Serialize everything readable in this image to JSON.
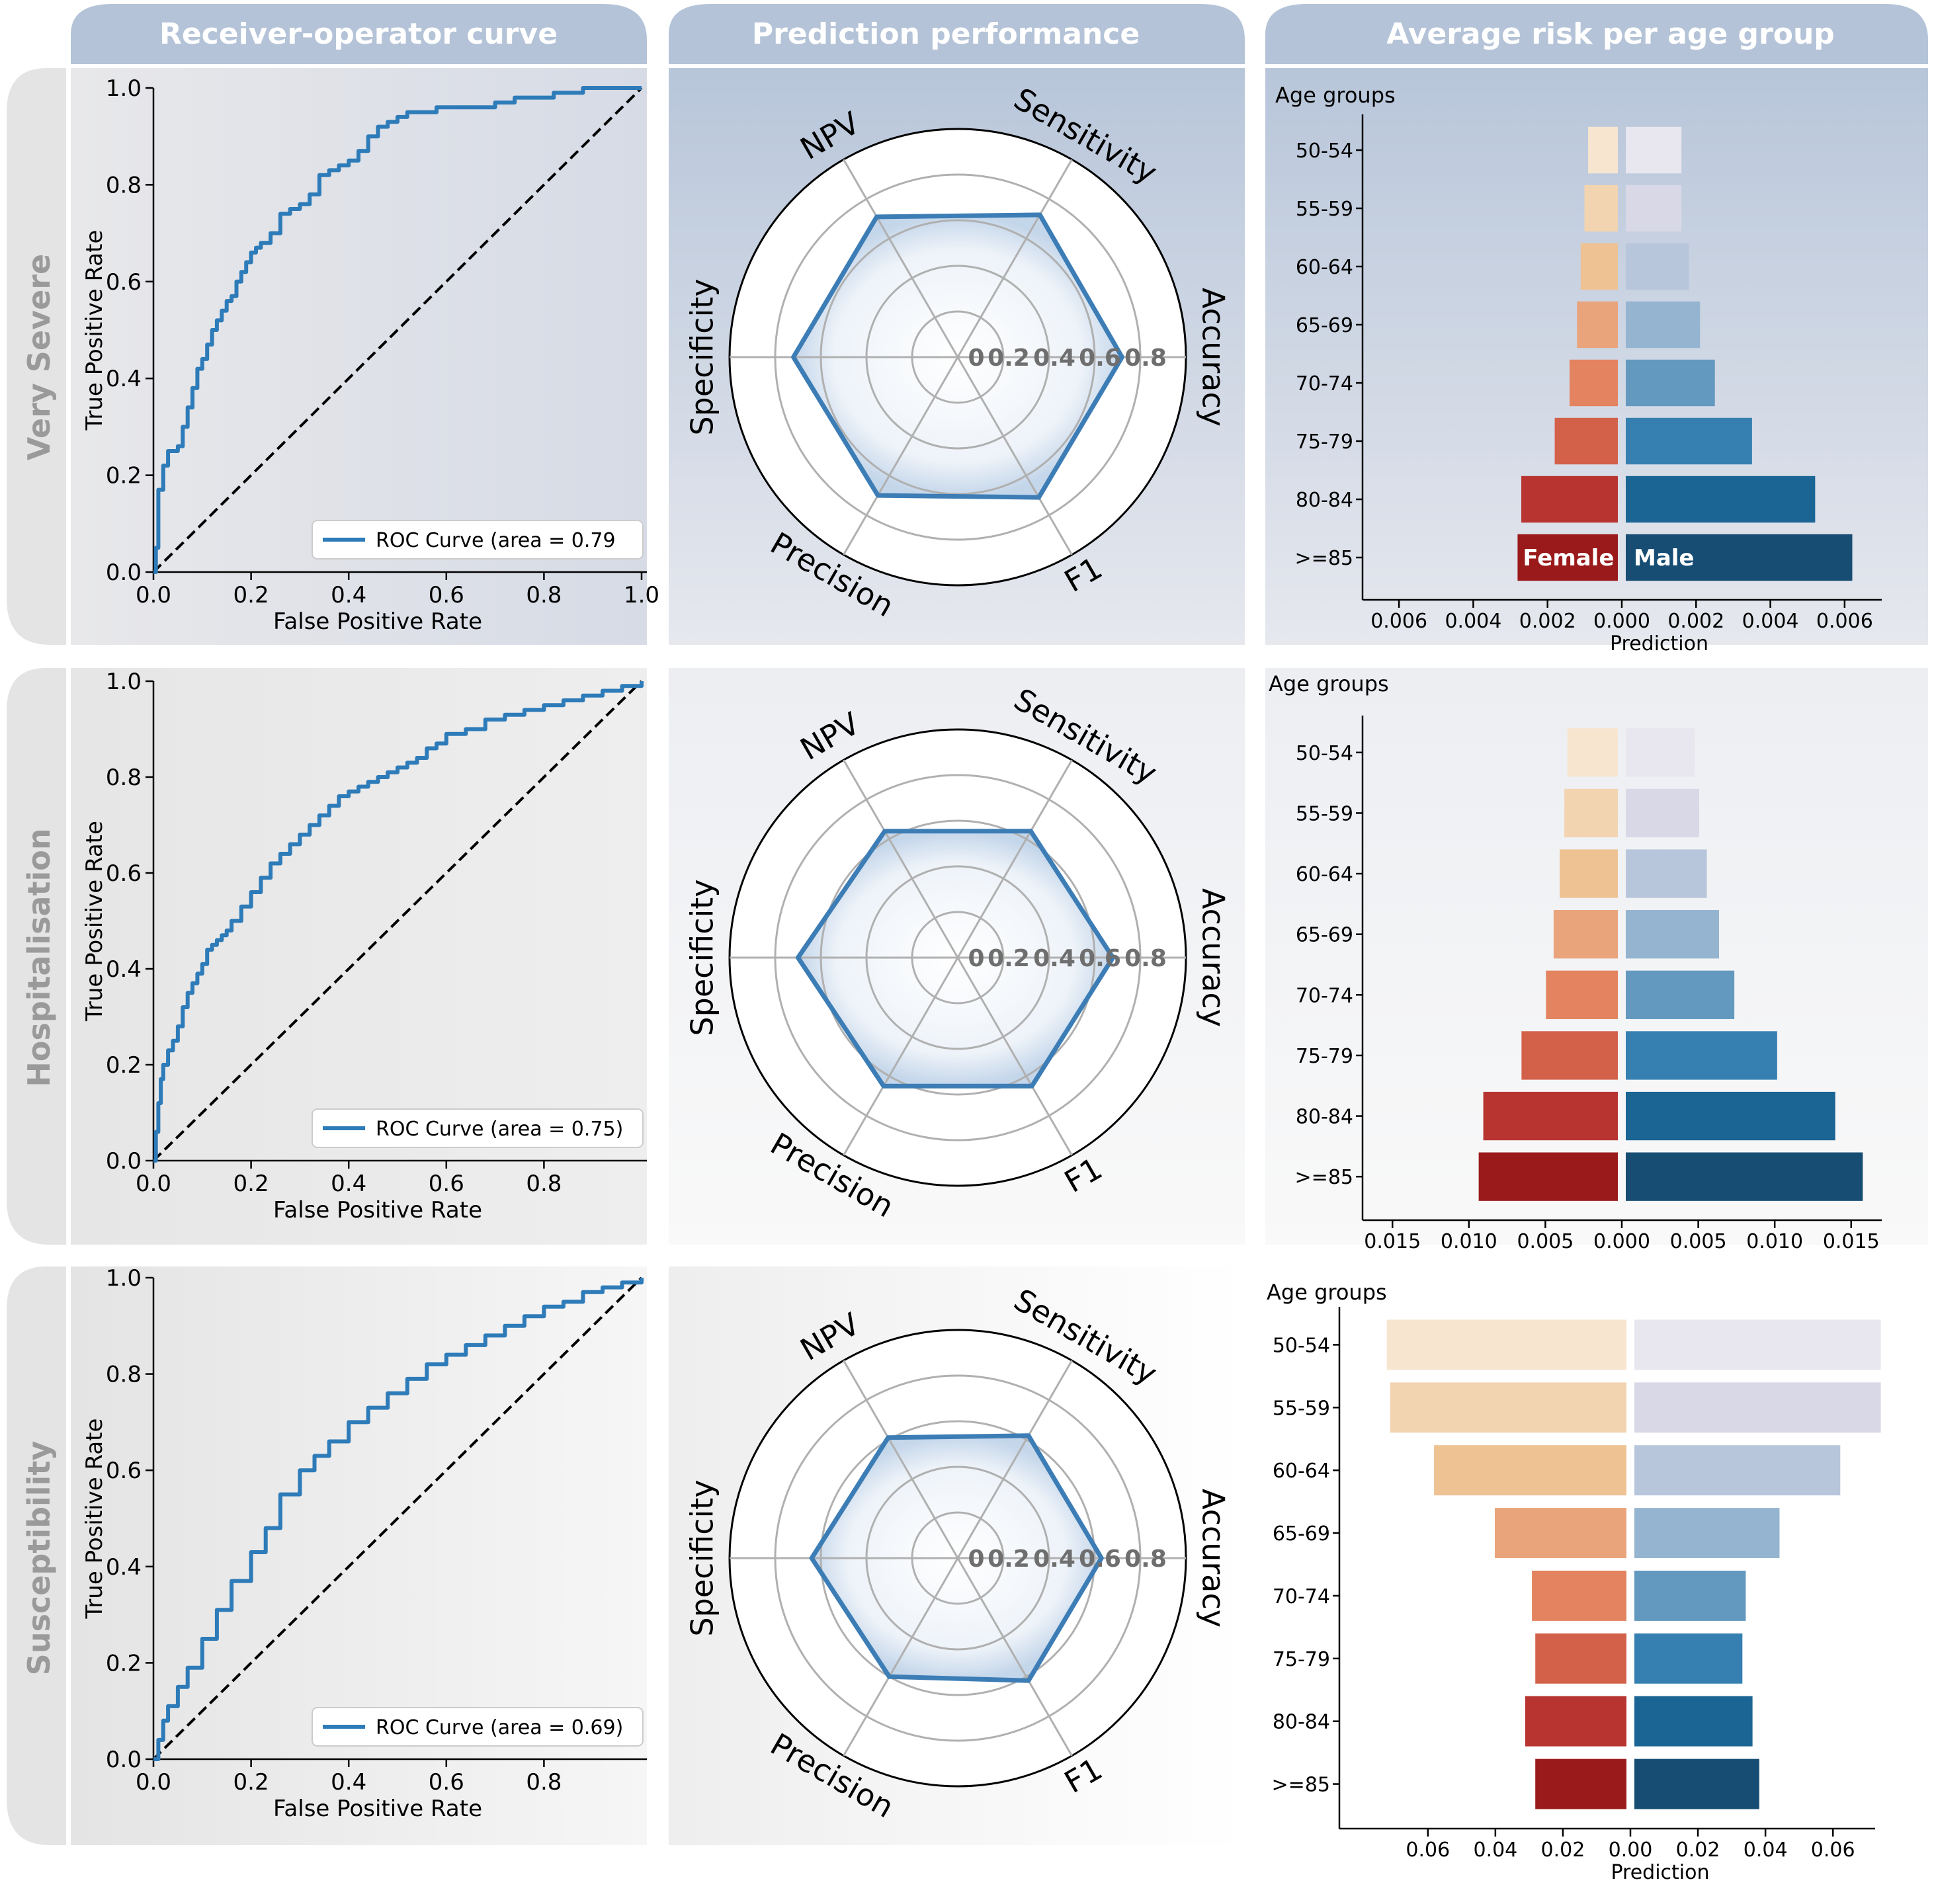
{
  "headers": {
    "roc": "Receiver-operator curve",
    "radar": "Prediction performance",
    "pyramid": "Average risk per age group"
  },
  "rows": [
    "Very Severe",
    "Hospitalisation",
    "Susceptibility"
  ],
  "colors": {
    "header_bg": "#b4c3d7",
    "roc_line": "#2d7bb8",
    "radar_line": "#3d7db6",
    "female": [
      "#f7e5d0",
      "#f3d4b1",
      "#eec292",
      "#e9a47c",
      "#e4835f",
      "#d36149",
      "#b83431",
      "#9a1a1b"
    ],
    "male": [
      "#e8e6ef",
      "#d8d8e7",
      "#b8c6dc",
      "#95b4d0",
      "#6399bf",
      "#3580b0",
      "#1b6595",
      "#174d73"
    ]
  },
  "chart_data": [
    {
      "type": "line",
      "panel": "roc",
      "row": "Very Severe",
      "xlabel": "False Positive Rate",
      "ylabel": "True Positive Rate",
      "xlim": [
        0,
        1
      ],
      "ylim": [
        0,
        1
      ],
      "xticks": [
        "0.0",
        "0.2",
        "0.4",
        "0.6",
        "0.8",
        "1.0"
      ],
      "yticks": [
        "0.0",
        "0.2",
        "0.4",
        "0.6",
        "0.8",
        "1.0"
      ],
      "legend": "ROC Curve (area = 0.79",
      "diagonal": true,
      "x": [
        0,
        0.005,
        0.01,
        0.01,
        0.02,
        0.02,
        0.03,
        0.03,
        0.04,
        0.05,
        0.06,
        0.07,
        0.08,
        0.09,
        0.1,
        0.11,
        0.12,
        0.13,
        0.14,
        0.15,
        0.16,
        0.17,
        0.18,
        0.19,
        0.2,
        0.21,
        0.22,
        0.24,
        0.26,
        0.28,
        0.3,
        0.32,
        0.34,
        0.36,
        0.38,
        0.4,
        0.42,
        0.44,
        0.46,
        0.48,
        0.5,
        0.52,
        0.55,
        0.58,
        0.62,
        0.66,
        0.7,
        0.74,
        0.78,
        0.82,
        0.86,
        0.88,
        0.92,
        0.96,
        1.0
      ],
      "y": [
        0,
        0.05,
        0.1,
        0.17,
        0.18,
        0.22,
        0.24,
        0.25,
        0.25,
        0.26,
        0.3,
        0.34,
        0.38,
        0.42,
        0.44,
        0.47,
        0.5,
        0.52,
        0.54,
        0.56,
        0.57,
        0.6,
        0.62,
        0.64,
        0.66,
        0.67,
        0.68,
        0.7,
        0.74,
        0.75,
        0.76,
        0.78,
        0.82,
        0.83,
        0.84,
        0.85,
        0.87,
        0.9,
        0.92,
        0.93,
        0.94,
        0.95,
        0.95,
        0.96,
        0.96,
        0.96,
        0.97,
        0.98,
        0.98,
        0.99,
        0.99,
        1.0,
        1.0,
        1.0,
        1.0
      ]
    },
    {
      "type": "radar",
      "panel": "radar",
      "row": "Very Severe",
      "axes": [
        "Sensitivity",
        "Accuracy",
        "F1",
        "Precision",
        "Specificity",
        "NPV"
      ],
      "rtick_labels": [
        "0",
        "0.2",
        "0.4",
        "0.6",
        "0.8"
      ],
      "rmax": 1.0,
      "values": [
        0.72,
        0.72,
        0.71,
        0.7,
        0.72,
        0.71
      ]
    },
    {
      "type": "bar",
      "panel": "pyramid",
      "row": "Very Severe",
      "categories": [
        "50-54",
        "55-59",
        "60-64",
        "65-69",
        "70-74",
        "75-79",
        "80-84",
        ">=85"
      ],
      "category_title": "Age groups",
      "xlabel": "Prediction",
      "xlim": [
        -0.007,
        0.007
      ],
      "xticks": [
        "0.006",
        "0.004",
        "0.002",
        "0.000",
        "0.002",
        "0.004",
        "0.006"
      ],
      "xtick_values": [
        -0.006,
        -0.004,
        -0.002,
        0,
        0.002,
        0.004,
        0.006
      ],
      "series": [
        {
          "name": "Female",
          "values": [
            0.0008,
            0.0009,
            0.001,
            0.0011,
            0.0013,
            0.0017,
            0.0026,
            0.0027
          ]
        },
        {
          "name": "Male",
          "values": [
            0.0015,
            0.0015,
            0.0017,
            0.002,
            0.0024,
            0.0034,
            0.0051,
            0.0061
          ]
        }
      ],
      "show_series_labels": true
    },
    {
      "type": "line",
      "panel": "roc",
      "row": "Hospitalisation",
      "xlabel": "False Positive Rate",
      "ylabel": "True Positive Rate",
      "xlim": [
        0,
        1
      ],
      "ylim": [
        0,
        1
      ],
      "xticks": [
        "0.0",
        "0.2",
        "0.4",
        "0.6",
        "0.8"
      ],
      "yticks": [
        "0.0",
        "0.2",
        "0.4",
        "0.6",
        "0.8",
        "1.0"
      ],
      "legend": "ROC Curve (area = 0.75)",
      "diagonal": true,
      "x": [
        0,
        0.005,
        0.01,
        0.015,
        0.02,
        0.03,
        0.04,
        0.05,
        0.06,
        0.07,
        0.08,
        0.09,
        0.1,
        0.11,
        0.12,
        0.13,
        0.14,
        0.15,
        0.16,
        0.18,
        0.2,
        0.22,
        0.24,
        0.26,
        0.28,
        0.3,
        0.32,
        0.34,
        0.36,
        0.38,
        0.4,
        0.42,
        0.44,
        0.46,
        0.48,
        0.5,
        0.52,
        0.54,
        0.56,
        0.58,
        0.6,
        0.64,
        0.68,
        0.72,
        0.76,
        0.8,
        0.84,
        0.88,
        0.92,
        0.96,
        1.0
      ],
      "y": [
        0,
        0.06,
        0.12,
        0.17,
        0.2,
        0.23,
        0.25,
        0.28,
        0.32,
        0.35,
        0.37,
        0.39,
        0.41,
        0.44,
        0.45,
        0.46,
        0.47,
        0.48,
        0.5,
        0.53,
        0.56,
        0.59,
        0.62,
        0.64,
        0.66,
        0.68,
        0.7,
        0.72,
        0.74,
        0.76,
        0.77,
        0.78,
        0.79,
        0.8,
        0.81,
        0.82,
        0.83,
        0.84,
        0.86,
        0.87,
        0.89,
        0.9,
        0.92,
        0.93,
        0.94,
        0.95,
        0.96,
        0.97,
        0.98,
        0.99,
        1.0
      ]
    },
    {
      "type": "radar",
      "panel": "radar",
      "row": "Hospitalisation",
      "axes": [
        "Sensitivity",
        "Accuracy",
        "F1",
        "Precision",
        "Specificity",
        "NPV"
      ],
      "rtick_labels": [
        "0",
        "0.2",
        "0.4",
        "0.6",
        "0.8"
      ],
      "rmax": 1.0,
      "values": [
        0.64,
        0.68,
        0.65,
        0.65,
        0.7,
        0.64
      ]
    },
    {
      "type": "bar",
      "panel": "pyramid",
      "row": "Hospitalisation",
      "categories": [
        "50-54",
        "55-59",
        "60-64",
        "65-69",
        "70-74",
        "75-79",
        "80-84",
        ">=85"
      ],
      "category_title": "Age groups",
      "xlabel": "Prediction",
      "xlim": [
        -0.017,
        0.017
      ],
      "xticks": [
        "0.015",
        "0.010",
        "0.005",
        "0.000",
        "0.005",
        "0.010",
        "0.015"
      ],
      "xtick_values": [
        -0.015,
        -0.01,
        -0.005,
        0,
        0.005,
        0.01,
        0.015
      ],
      "series": [
        {
          "name": "Female",
          "values": [
            0.0033,
            0.0035,
            0.0038,
            0.0042,
            0.0047,
            0.0063,
            0.0088,
            0.0091
          ]
        },
        {
          "name": "Male",
          "values": [
            0.0045,
            0.0048,
            0.0053,
            0.0061,
            0.0071,
            0.0099,
            0.0137,
            0.0155
          ]
        }
      ],
      "show_series_labels": false
    },
    {
      "type": "line",
      "panel": "roc",
      "row": "Susceptibility",
      "xlabel": "False Positive Rate",
      "ylabel": "True Positive Rate",
      "xlim": [
        0,
        1
      ],
      "ylim": [
        0,
        1
      ],
      "xticks": [
        "0.0",
        "0.2",
        "0.4",
        "0.6",
        "0.8"
      ],
      "yticks": [
        "0.0",
        "0.2",
        "0.4",
        "0.6",
        "0.8",
        "1.0"
      ],
      "legend": "ROC Curve (area = 0.69)",
      "diagonal": true,
      "x": [
        0,
        0.01,
        0.02,
        0.03,
        0.05,
        0.07,
        0.1,
        0.13,
        0.16,
        0.2,
        0.23,
        0.26,
        0.3,
        0.33,
        0.36,
        0.4,
        0.44,
        0.48,
        0.52,
        0.56,
        0.6,
        0.64,
        0.68,
        0.72,
        0.76,
        0.8,
        0.84,
        0.88,
        0.92,
        0.96,
        1.0
      ],
      "y": [
        0,
        0.04,
        0.08,
        0.11,
        0.15,
        0.19,
        0.25,
        0.31,
        0.37,
        0.43,
        0.48,
        0.55,
        0.6,
        0.63,
        0.66,
        0.7,
        0.73,
        0.76,
        0.79,
        0.82,
        0.84,
        0.86,
        0.88,
        0.9,
        0.92,
        0.94,
        0.95,
        0.97,
        0.98,
        0.99,
        1.0
      ]
    },
    {
      "type": "radar",
      "panel": "radar",
      "row": "Susceptibility",
      "axes": [
        "Sensitivity",
        "Accuracy",
        "F1",
        "Precision",
        "Specificity",
        "NPV"
      ],
      "rtick_labels": [
        "0",
        "0.2",
        "0.4",
        "0.6",
        "0.8"
      ],
      "rmax": 1.0,
      "values": [
        0.62,
        0.63,
        0.62,
        0.6,
        0.64,
        0.61
      ]
    },
    {
      "type": "bar",
      "panel": "pyramid",
      "row": "Susceptibility",
      "categories": [
        "50-54",
        "55-59",
        "60-64",
        "65-69",
        "70-74",
        "75-79",
        "80-84",
        ">=85"
      ],
      "category_title": "Age groups",
      "xlabel": "Prediction",
      "xlim": [
        -0.0725,
        0.0725
      ],
      "xticks": [
        "0.06",
        "0.04",
        "0.02",
        "0.00",
        "0.02",
        "0.04",
        "0.06"
      ],
      "xtick_values": [
        -0.06,
        -0.04,
        -0.02,
        0,
        0.02,
        0.04,
        0.06
      ],
      "series": [
        {
          "name": "Female",
          "values": [
            0.071,
            0.07,
            0.057,
            0.039,
            0.028,
            0.027,
            0.03,
            0.027
          ]
        },
        {
          "name": "Male",
          "values": [
            0.073,
            0.073,
            0.061,
            0.043,
            0.033,
            0.032,
            0.035,
            0.037
          ]
        }
      ],
      "show_series_labels": false
    }
  ]
}
